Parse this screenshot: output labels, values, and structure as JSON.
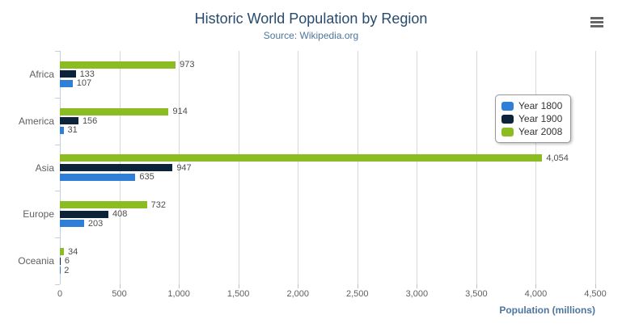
{
  "header": {
    "title": "Historic World Population by Region",
    "subtitle": "Source: Wikipedia.org",
    "menu_icon": "hamburger-export-menu"
  },
  "chart_data": {
    "type": "bar",
    "orientation": "horizontal",
    "title": "Historic World Population by Region",
    "subtitle": "Source: Wikipedia.org",
    "categories": [
      "Africa",
      "America",
      "Asia",
      "Europe",
      "Oceania"
    ],
    "series": [
      {
        "name": "Year 1800",
        "color": "#2f7ed8",
        "values": [
          107,
          31,
          635,
          203,
          2
        ]
      },
      {
        "name": "Year 1900",
        "color": "#0d233a",
        "values": [
          133,
          156,
          947,
          408,
          6
        ]
      },
      {
        "name": "Year 2008",
        "color": "#8bbc21",
        "values": [
          973,
          914,
          4054,
          732,
          34
        ]
      }
    ],
    "bar_order_top_to_bottom": [
      "Year 2008",
      "Year 1900",
      "Year 1800"
    ],
    "xlabel": "Population (millions)",
    "ylabel": "",
    "xlim": [
      0,
      4500
    ],
    "tick_interval": 500,
    "tick_labels": [
      "0",
      "500",
      "1,000",
      "1,500",
      "2,000",
      "2,500",
      "3,000",
      "3,500",
      "4,000",
      "4,500"
    ],
    "grid": true,
    "legend_position": "inside-right",
    "data_labels_shown": true
  },
  "colors": {
    "title": "#274b6d",
    "subtitle": "#4d759e",
    "axis_title": "#4d759e",
    "axis_labels": "#606060",
    "data_labels": "#4d4d4d",
    "gridline": "#d8d8d8",
    "axis_line": "#c0d0e0",
    "background": "#ffffff"
  }
}
